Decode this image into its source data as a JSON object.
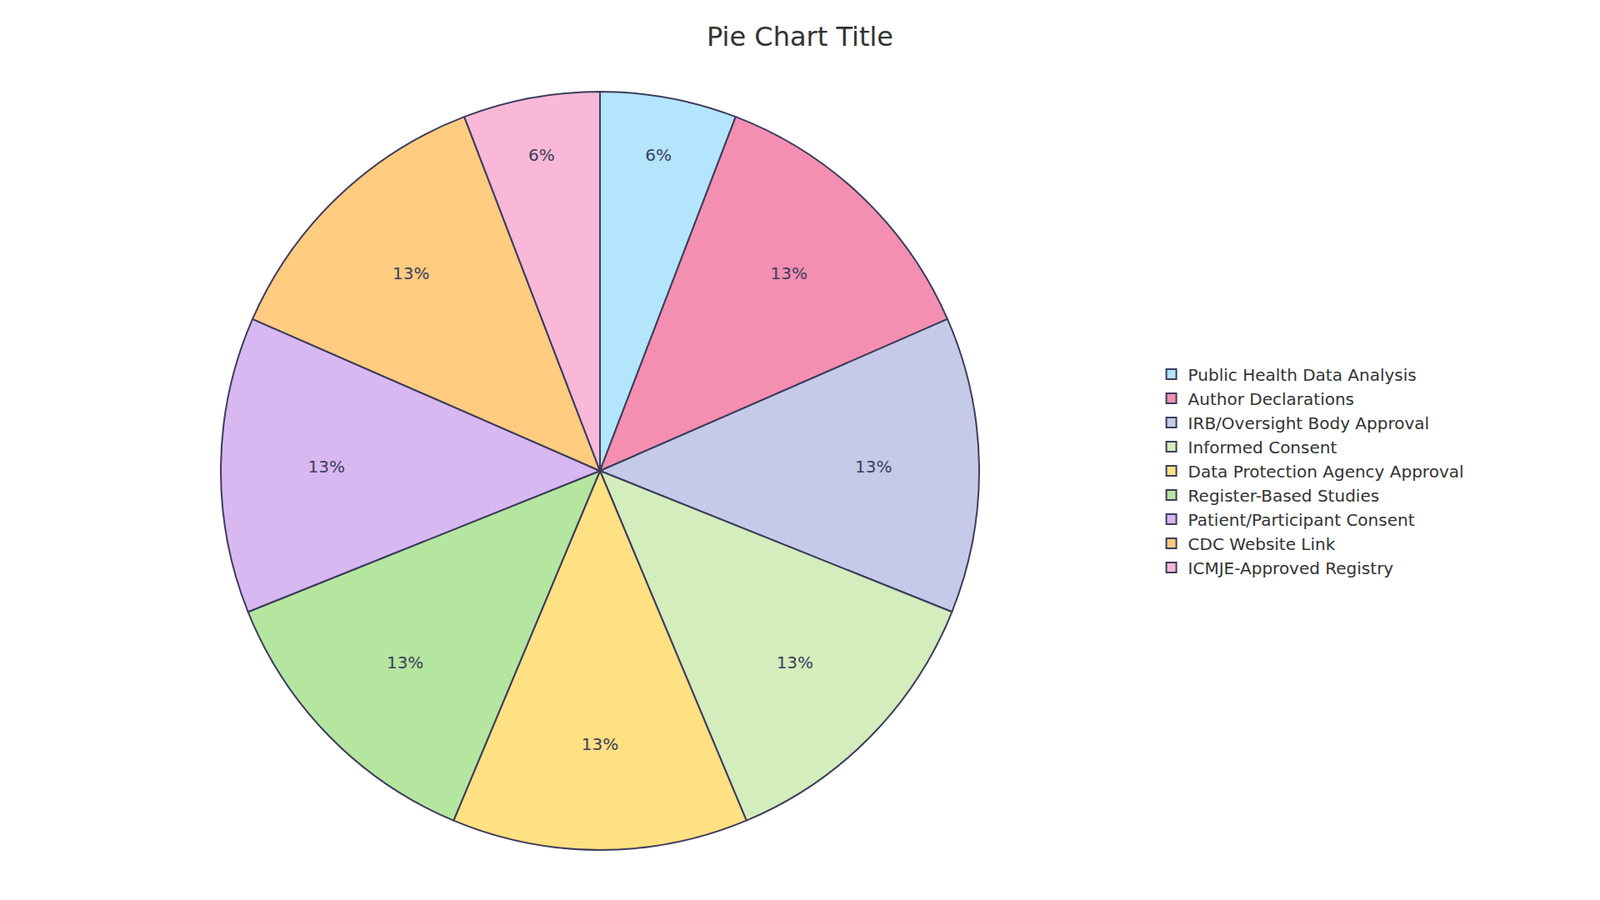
{
  "chart_data": {
    "type": "pie",
    "title": "Pie Chart Title",
    "categories": [
      "Public Health Data Analysis",
      "Author Declarations",
      "IRB/Oversight Body Approval",
      "Informed Consent",
      "Data Protection Agency Approval",
      "Register-Based Studies",
      "Patient/Participant Consent",
      "CDC Website Link",
      "ICMJE-Approved Registry"
    ],
    "values": [
      6,
      13,
      13,
      13,
      13,
      13,
      13,
      13,
      6
    ],
    "value_labels": [
      "6%",
      "13%",
      "13%",
      "13%",
      "13%",
      "13%",
      "13%",
      "13%",
      "6%"
    ],
    "colors": [
      "#B3E5FC",
      "#F48FB1",
      "#C5CAE9",
      "#D4EDBC",
      "#FFE082",
      "#B5E6A0",
      "#D8B8F0",
      "#FFCC80",
      "#F9B8D8"
    ],
    "data_labels": true,
    "legend": "right"
  }
}
